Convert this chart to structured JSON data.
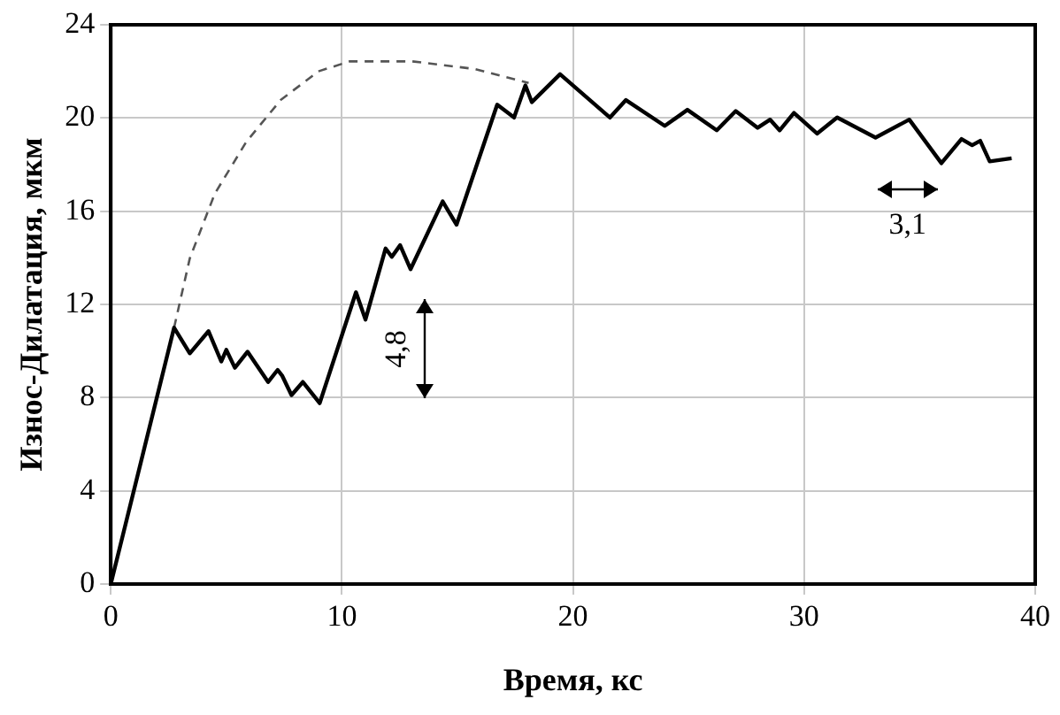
{
  "chart_data": {
    "type": "line",
    "xlabel": "Время, кс",
    "ylabel": "Износ-Дилатация, мкм",
    "xlim": [
      0,
      40
    ],
    "xticks": [
      0,
      10,
      20,
      30,
      40
    ],
    "ylim": [
      0,
      24
    ],
    "yticks": [
      0,
      4,
      8,
      12,
      16,
      20,
      24
    ],
    "grid": true,
    "marker": "none",
    "series": [
      {
        "color": "#000000",
        "line_style": "solid",
        "x": [
          0,
          2.74,
          3.42,
          4.23,
          4.78,
          5.0,
          5.37,
          5.92,
          6.81,
          7.22,
          7.41,
          7.82,
          8.31,
          9.04,
          10.61,
          11.02,
          11.89,
          12.16,
          12.52,
          12.97,
          14.36,
          14.96,
          16.72,
          17.45,
          17.94,
          18.22,
          19.44,
          21.6,
          22.29,
          23.97,
          24.95,
          26.22,
          27.04,
          27.99,
          28.53,
          28.94,
          29.56,
          30.56,
          31.43,
          33.09,
          34.55,
          35.94,
          36.81,
          37.27,
          37.62,
          38.03,
          38.98
        ],
        "values": [
          0,
          11.0,
          9.9,
          10.85,
          9.55,
          10.05,
          9.28,
          9.97,
          8.67,
          9.19,
          8.95,
          8.11,
          8.67,
          7.76,
          12.52,
          11.35,
          14.4,
          14.04,
          14.54,
          13.51,
          16.42,
          15.42,
          20.57,
          20.02,
          21.4,
          20.68,
          21.88,
          20.02,
          20.77,
          19.66,
          20.35,
          19.47,
          20.3,
          19.58,
          19.93,
          19.47,
          20.22,
          19.33,
          20.02,
          19.16,
          19.93,
          18.06,
          19.1,
          18.83,
          19.02,
          18.14,
          18.27
        ]
      },
      {
        "color": "#555555",
        "line_style": "dashed",
        "x": [
          2.74,
          3.42,
          4.5,
          5.86,
          7.35,
          8.98,
          10.34,
          13.05,
          15.77,
          18.08
        ],
        "values": [
          11.0,
          13.98,
          16.75,
          18.97,
          20.77,
          22.0,
          22.43,
          22.43,
          22.1,
          21.5
        ]
      }
    ],
    "annotations": [
      "4,8",
      "3,1"
    ]
  }
}
